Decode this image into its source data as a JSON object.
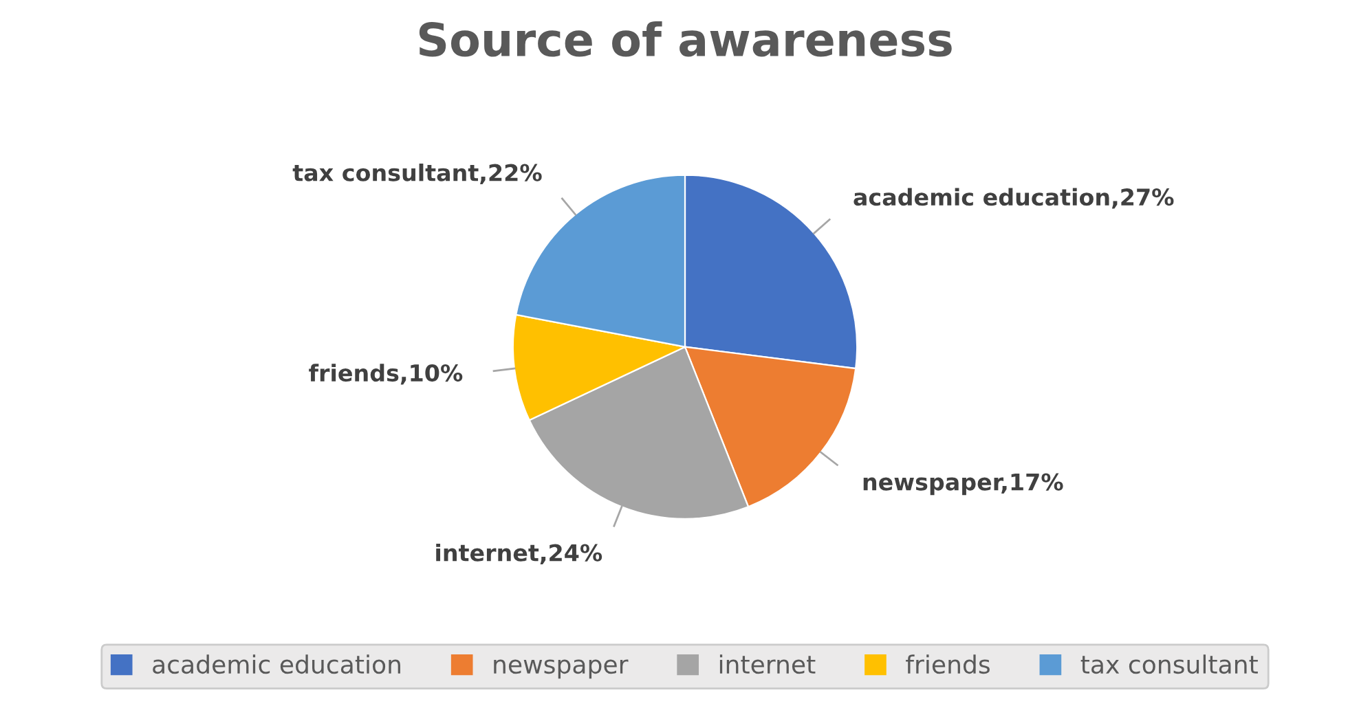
{
  "chart_data": {
    "type": "pie",
    "title": "Source of awareness",
    "categories": [
      "academic education",
      "newspaper",
      "internet",
      "friends",
      "tax consultant"
    ],
    "values": [
      27,
      17,
      24,
      10,
      22
    ],
    "colors": [
      "#4472c4",
      "#ed7d31",
      "#a5a5a5",
      "#ffc000",
      "#5b9bd5"
    ],
    "value_labels": [
      "academic education,27%",
      "newspaper,17%",
      "internet,24%",
      "friends,10%",
      "tax consultant,22%"
    ],
    "legend": "bottom"
  }
}
